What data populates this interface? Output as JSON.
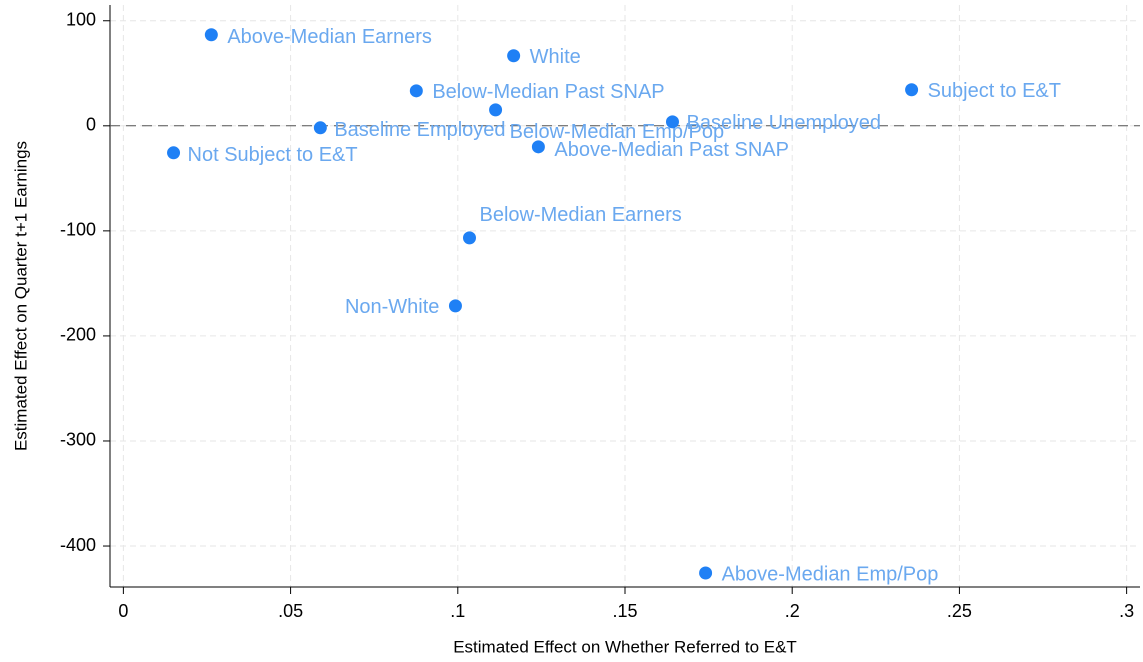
{
  "chart_data": {
    "type": "scatter",
    "xlabel": "Estimated Effect on Whether Referred to E&T",
    "ylabel": "Estimated Effect on Quarter t+1 Earnings",
    "xlim": [
      -0.004,
      0.304
    ],
    "ylim": [
      -439,
      115
    ],
    "xticks": [
      0,
      {
        "value": 0.05,
        "label": ".05"
      },
      {
        "value": 0.1,
        "label": ".1"
      },
      {
        "value": 0.15,
        "label": ".15"
      },
      {
        "value": 0.2,
        "label": ".2"
      },
      {
        "value": 0.25,
        "label": ".25"
      },
      {
        "value": 0.3,
        "label": ".3"
      }
    ],
    "yticks": [
      100,
      0,
      -100,
      -200,
      -300,
      -400
    ],
    "grid": true,
    "hline": 0,
    "color": "#1f80f5",
    "label_color": "#6aa8ef",
    "point_labels": [
      "Above-Median Earners",
      "White",
      "Below-Median Past SNAP",
      "Subject to E&T",
      "Below-Median Emp/Pop",
      "Baseline Employed",
      "Baseline Unemployed",
      "Above-Median Past SNAP",
      "Not Subject to E&T",
      "Below-Median Earners",
      "Non-White",
      "Above-Median Emp/Pop"
    ],
    "x": [
      0.0263,
      0.1167,
      0.0876,
      0.2357,
      0.1113,
      0.0589,
      0.1642,
      0.1241,
      0.015,
      0.1035,
      0.0993,
      0.1741
    ],
    "values": [
      86.7,
      66.7,
      33.3,
      34.3,
      15.2,
      -1.9,
      3.8,
      -20,
      -25.7,
      -106.7,
      -171.4,
      -425.7
    ]
  }
}
